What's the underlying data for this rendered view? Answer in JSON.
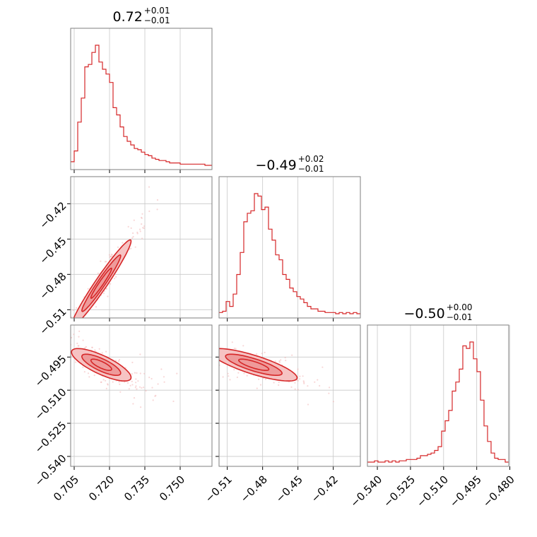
{
  "chart_data": {
    "type": "corner",
    "color": "#d62728",
    "grid": true,
    "params": [
      {
        "title": {
          "median": "0.72",
          "plus": "+0.01",
          "minus": "−0.01"
        },
        "range": [
          0.7035,
          0.7635
        ],
        "ticks": [
          0.705,
          0.72,
          0.735,
          0.75
        ],
        "ticklabels": [
          "0.705",
          "0.720",
          "0.735",
          "0.750"
        ]
      },
      {
        "title": {
          "median": "−0.49",
          "plus": "+0.02",
          "minus": "−0.01"
        },
        "range": [
          -0.517,
          -0.397
        ],
        "ticks": [
          -0.51,
          -0.48,
          -0.45,
          -0.42
        ],
        "ticklabels": [
          "−0.51",
          "−0.48",
          "−0.45",
          "−0.42"
        ]
      },
      {
        "title": {
          "median": "−0.50",
          "plus": "+0.00",
          "minus": "−0.01"
        },
        "range": [
          -0.5445,
          -0.4805
        ],
        "ticks": [
          -0.54,
          -0.525,
          -0.51,
          -0.495,
          -0.48
        ],
        "ticklabels": [
          "−0.540",
          "−0.525",
          "−0.510",
          "−0.495",
          "−0.480"
        ]
      }
    ],
    "histograms": [
      {
        "param": 0,
        "bin_start": 0.7035,
        "bin_width": 0.0015,
        "counts": [
          3,
          12,
          36,
          56,
          82,
          84,
          94,
          100,
          86,
          80,
          76,
          69,
          48,
          42,
          32,
          24,
          20,
          17,
          14,
          13,
          11,
          9,
          8,
          6,
          5,
          4,
          4,
          3,
          2,
          2,
          2,
          1,
          1,
          1,
          1,
          1,
          1,
          1,
          0,
          0
        ]
      },
      {
        "param": 1,
        "bin_start": -0.517,
        "bin_width": 0.003,
        "counts": [
          1,
          2,
          10,
          6,
          16,
          32,
          50,
          75,
          82,
          84,
          98,
          96,
          85,
          87,
          69,
          60,
          48,
          44,
          32,
          28,
          21,
          18,
          14,
          12,
          9,
          6,
          4,
          4,
          2,
          2,
          1,
          1,
          1,
          0,
          1,
          0,
          1,
          0,
          1,
          0
        ]
      },
      {
        "param": 2,
        "bin_start": -0.5445,
        "bin_width": 0.0016,
        "counts": [
          0,
          0,
          1,
          0,
          0,
          1,
          0,
          1,
          0,
          1,
          1,
          2,
          2,
          2,
          3,
          5,
          5,
          6,
          7,
          9,
          12,
          24,
          32,
          40,
          55,
          62,
          72,
          90,
          88,
          93,
          80,
          70,
          48,
          28,
          16,
          7,
          3,
          2,
          2,
          0
        ]
      }
    ],
    "pairs": [
      {
        "x": 0,
        "y": 1,
        "center": [
          0.7165,
          -0.4875
        ],
        "sigma": [
          0.0055,
          0.016
        ],
        "rho": 0.97
      },
      {
        "x": 0,
        "y": 2,
        "center": [
          0.7165,
          -0.4985
        ],
        "sigma": [
          0.0055,
          0.0032
        ],
        "rho": -0.78
      },
      {
        "x": 1,
        "y": 2,
        "center": [
          -0.4875,
          -0.4985
        ],
        "sigma": [
          0.016,
          0.0032
        ],
        "rho": -0.8
      }
    ]
  }
}
